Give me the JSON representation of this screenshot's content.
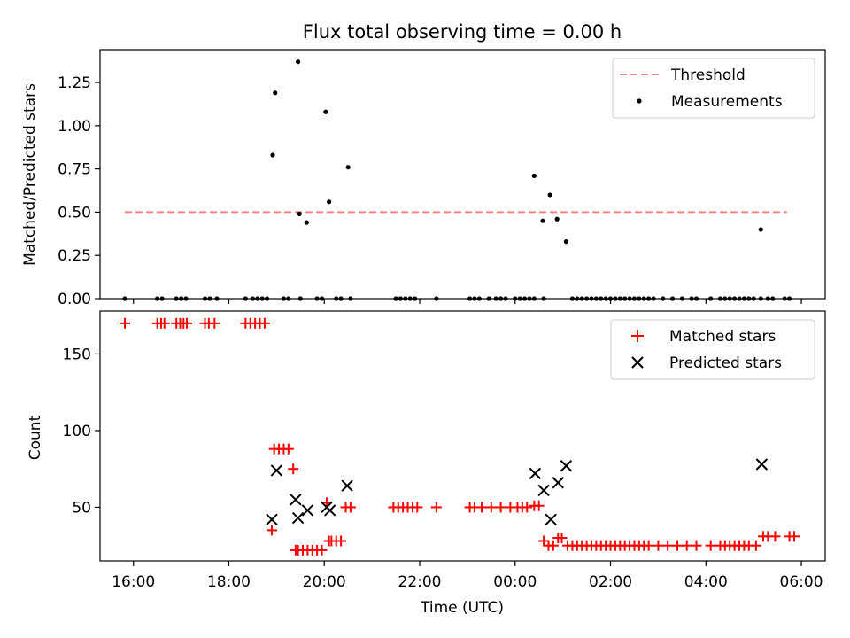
{
  "chart_data": [
    {
      "type": "scatter",
      "title": "Flux total observing time = 0.00 h",
      "xlabel": "",
      "ylabel": "Matched/Predicted stars",
      "x_unit": "hours since 00:00 UTC on observation night start",
      "xlim": [
        15.3,
        30.5
      ],
      "ylim": [
        0,
        1.44
      ],
      "yticks": [
        0.0,
        0.25,
        0.5,
        0.75,
        1.0,
        1.25
      ],
      "ytick_labels": [
        "0.00",
        "0.25",
        "0.50",
        "0.75",
        "1.00",
        "1.25"
      ],
      "legend": {
        "placement": "top-right",
        "entries": [
          {
            "label": "Threshold",
            "style": "dashed-line",
            "color": "#ff8080"
          },
          {
            "label": "Measurements",
            "style": "dot",
            "color": "#000000"
          }
        ]
      },
      "threshold": {
        "value": 0.5,
        "x_from": 15.82,
        "x_to": 29.7
      },
      "measurements": {
        "x": [
          18.92,
          18.97,
          19.45,
          19.48,
          19.63,
          20.03,
          20.1,
          20.5,
          24.4,
          24.58,
          24.73,
          24.88,
          25.07,
          29.15,
          15.82,
          16.5,
          16.6,
          16.9,
          17.0,
          17.1,
          17.5,
          17.6,
          17.75,
          18.35,
          18.5,
          18.6,
          18.7,
          18.8,
          19.15,
          19.25,
          19.5,
          19.85,
          19.95,
          20.25,
          20.35,
          20.55,
          21.5,
          21.6,
          21.7,
          21.8,
          21.9,
          22.35,
          23.05,
          23.15,
          23.25,
          23.45,
          23.6,
          23.7,
          23.8,
          24.0,
          24.1,
          24.2,
          24.3,
          24.4,
          24.6,
          25.2,
          25.3,
          25.4,
          25.5,
          25.6,
          25.7,
          25.8,
          25.9,
          26.0,
          26.1,
          26.2,
          26.3,
          26.4,
          26.5,
          26.6,
          26.7,
          26.8,
          26.9,
          27.1,
          27.3,
          27.5,
          27.7,
          27.8,
          28.1,
          28.3,
          28.4,
          28.5,
          28.6,
          28.7,
          28.8,
          28.9,
          29.0,
          29.15,
          29.3,
          29.4,
          29.65,
          29.75
        ],
        "y": [
          0.83,
          1.19,
          1.37,
          0.49,
          0.44,
          1.08,
          0.56,
          0.76,
          0.71,
          0.45,
          0.6,
          0.46,
          0.33,
          0.4,
          0,
          0,
          0,
          0,
          0,
          0,
          0,
          0,
          0,
          0,
          0,
          0,
          0,
          0,
          0,
          0,
          0,
          0,
          0,
          0,
          0,
          0,
          0,
          0,
          0,
          0,
          0,
          0,
          0,
          0,
          0,
          0,
          0,
          0,
          0,
          0,
          0,
          0,
          0,
          0,
          0,
          0,
          0,
          0,
          0,
          0,
          0,
          0,
          0,
          0,
          0,
          0,
          0,
          0,
          0,
          0,
          0,
          0,
          0,
          0,
          0,
          0,
          0,
          0,
          0,
          0,
          0,
          0,
          0,
          0,
          0,
          0,
          0,
          0,
          0,
          0,
          0,
          0
        ]
      }
    },
    {
      "type": "scatter",
      "title": "",
      "xlabel": "Time (UTC)",
      "ylabel": "Count",
      "x_unit": "hours since 00:00 UTC on observation night start",
      "xlim": [
        15.3,
        30.5
      ],
      "ylim": [
        15,
        178
      ],
      "yticks": [
        50,
        100,
        150
      ],
      "ytick_labels": [
        "50",
        "100",
        "150"
      ],
      "xticks": [
        16,
        18,
        20,
        22,
        24,
        26,
        28,
        30
      ],
      "xtick_labels": [
        "16:00",
        "18:00",
        "20:00",
        "22:00",
        "00:00",
        "02:00",
        "04:00",
        "06:00"
      ],
      "legend": {
        "placement": "top-right",
        "entries": [
          {
            "label": "Matched stars",
            "style": "plus",
            "color": "#ff0000"
          },
          {
            "label": "Predicted stars",
            "style": "x",
            "color": "#000000"
          }
        ]
      },
      "matched": {
        "x": [
          15.82,
          16.5,
          16.58,
          16.65,
          16.9,
          16.98,
          17.05,
          17.12,
          17.5,
          17.58,
          17.7,
          18.35,
          18.45,
          18.55,
          18.65,
          18.75,
          18.9,
          18.95,
          19.05,
          19.15,
          19.25,
          19.35,
          19.4,
          19.45,
          19.55,
          19.65,
          19.75,
          19.85,
          19.95,
          20.05,
          20.1,
          20.15,
          20.25,
          20.35,
          20.45,
          20.55,
          21.45,
          21.55,
          21.65,
          21.75,
          21.85,
          21.95,
          22.35,
          23.05,
          23.15,
          23.3,
          23.5,
          23.7,
          23.9,
          24.05,
          24.15,
          24.25,
          24.4,
          24.5,
          24.6,
          24.7,
          24.8,
          24.9,
          24.98,
          25.1,
          25.2,
          25.3,
          25.4,
          25.5,
          25.6,
          25.7,
          25.8,
          25.9,
          26.0,
          26.1,
          26.2,
          26.3,
          26.4,
          26.5,
          26.6,
          26.7,
          26.8,
          27.0,
          27.2,
          27.4,
          27.6,
          27.8,
          28.1,
          28.3,
          28.4,
          28.5,
          28.6,
          28.7,
          28.8,
          28.9,
          29.05,
          29.2,
          29.3,
          29.45,
          29.75,
          29.85
        ],
        "y": [
          170,
          170,
          170,
          170,
          170,
          170,
          170,
          170,
          170,
          170,
          170,
          170,
          170,
          170,
          170,
          170,
          35,
          88,
          88,
          88,
          88,
          75,
          22,
          22,
          22,
          22,
          22,
          22,
          22,
          53,
          28,
          28,
          28,
          28,
          50,
          50,
          50,
          50,
          50,
          50,
          50,
          50,
          50,
          50,
          50,
          50,
          50,
          50,
          50,
          50,
          50,
          50,
          51,
          51,
          28,
          25,
          25,
          30,
          30,
          25,
          25,
          25,
          25,
          25,
          25,
          25,
          25,
          25,
          25,
          25,
          25,
          25,
          25,
          25,
          25,
          25,
          25,
          25,
          25,
          25,
          25,
          25,
          25,
          25,
          25,
          25,
          25,
          25,
          25,
          25,
          25,
          31,
          31,
          31,
          31,
          31
        ]
      },
      "predicted": {
        "x": [
          18.9,
          19.0,
          19.4,
          19.45,
          19.65,
          20.05,
          20.12,
          20.48,
          24.42,
          24.6,
          24.75,
          24.9,
          25.07,
          29.17
        ],
        "y": [
          42,
          74,
          55,
          43,
          48,
          50,
          48,
          64,
          72,
          61,
          42,
          66,
          77,
          78
        ]
      }
    }
  ]
}
